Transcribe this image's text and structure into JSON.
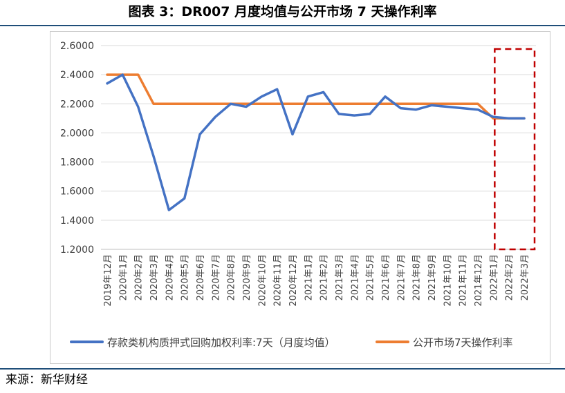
{
  "title": "图表 3：DR007 月度均值与公开市场 7 天操作利率",
  "source": "来源：新华财经",
  "colors": {
    "blue_series": "#4472c4",
    "orange_series": "#ed7d31",
    "highlight_box": "#c00000",
    "grid": "#d9d9d9"
  },
  "chart_data": {
    "type": "line",
    "title": "图表 3：DR007 月度均值与公开市场 7 天操作利率",
    "xlabel": "",
    "ylabel": "",
    "ylim": [
      1.2,
      2.6
    ],
    "yticks": [
      "1.2000",
      "1.4000",
      "1.6000",
      "1.8000",
      "2.0000",
      "2.2000",
      "2.4000",
      "2.6000"
    ],
    "grid": true,
    "legend_position": "bottom",
    "categories": [
      "2019年12月",
      "2020年1月",
      "2020年2月",
      "2020年3月",
      "2020年4月",
      "2020年5月",
      "2020年6月",
      "2020年7月",
      "2020年8月",
      "2020年9月",
      "2020年10月",
      "2020年11月",
      "2020年12月",
      "2021年1月",
      "2021年2月",
      "2021年3月",
      "2021年4月",
      "2021年5月",
      "2021年6月",
      "2021年7月",
      "2021年8月",
      "2021年9月",
      "2021年10月",
      "2021年11月",
      "2021年12月",
      "2022年1月",
      "2022年2月",
      "2022年3月"
    ],
    "series": [
      {
        "name": "存款类机构质押式回购加权利率:7天（月度均值）",
        "color": "#4472c4",
        "values": [
          2.34,
          2.4,
          2.18,
          1.84,
          1.47,
          1.55,
          1.99,
          2.11,
          2.2,
          2.18,
          2.25,
          2.3,
          1.99,
          2.25,
          2.28,
          2.13,
          2.12,
          2.13,
          2.25,
          2.17,
          2.16,
          2.19,
          2.18,
          2.17,
          2.16,
          2.11,
          2.1,
          2.1
        ]
      },
      {
        "name": "公开市场7天操作利率",
        "color": "#ed7d31",
        "values": [
          2.4,
          2.4,
          2.4,
          2.2,
          2.2,
          2.2,
          2.2,
          2.2,
          2.2,
          2.2,
          2.2,
          2.2,
          2.2,
          2.2,
          2.2,
          2.2,
          2.2,
          2.2,
          2.2,
          2.2,
          2.2,
          2.2,
          2.2,
          2.2,
          2.2,
          2.1,
          2.1,
          2.1
        ]
      }
    ],
    "annotations": [
      {
        "type": "dashed-box",
        "color": "#c00000",
        "from_category": "2022年1月",
        "to_category": "2022年3月"
      }
    ]
  }
}
